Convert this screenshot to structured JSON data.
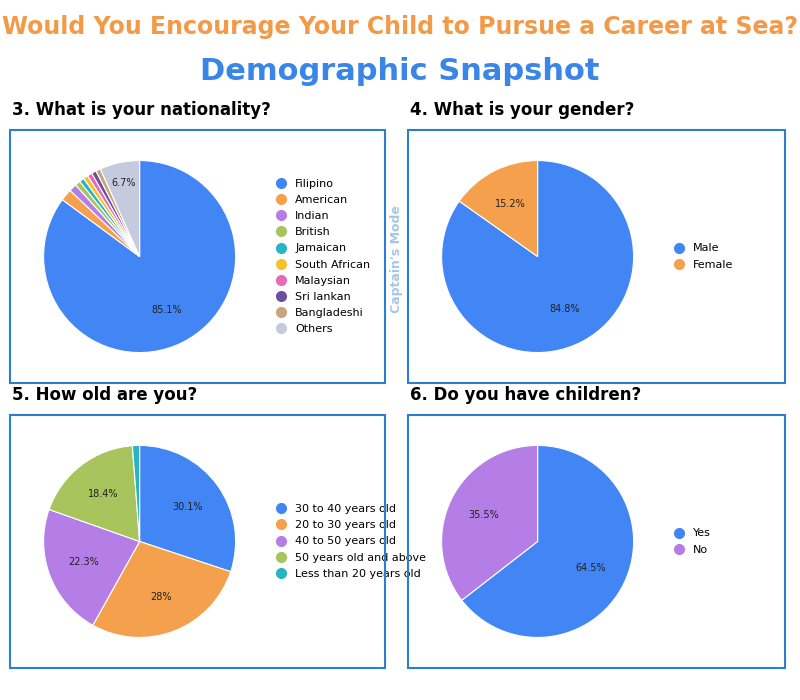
{
  "header": {
    "title": "Would You Encourage Your Child to Pursue a Career at Sea?",
    "subtitle": "Demographic Snapshot",
    "watermark": "Captain's Mode"
  },
  "chart_data": [
    {
      "type": "pie",
      "title": "3. What is your nationality?",
      "categories": [
        "Filipino",
        "American",
        "Indian",
        "British",
        "Jamaican",
        "South African",
        "Malaysian",
        "Sri lankan",
        "Bangladeshi",
        "Others"
      ],
      "values": [
        85.1,
        2.0,
        1.3,
        0.9,
        0.8,
        0.8,
        0.8,
        0.8,
        0.8,
        6.7
      ],
      "value_labels": [
        "85.1%",
        null,
        null,
        null,
        null,
        null,
        null,
        null,
        null,
        "6.7%"
      ],
      "colors": [
        "#4285f4",
        "#f4a04c",
        "#b47ee6",
        "#a8c45c",
        "#27b5c4",
        "#f6c12e",
        "#e66ab4",
        "#6b4fa0",
        "#c9a57c",
        "#c5cadf"
      ],
      "legend": "center left"
    },
    {
      "type": "pie",
      "title": "4. What is your gender?",
      "categories": [
        "Male",
        "Female"
      ],
      "values": [
        84.8,
        15.2
      ],
      "value_labels": [
        "84.8%",
        "15.2%"
      ],
      "colors": [
        "#4285f4",
        "#f4a04c"
      ],
      "legend": "center left"
    },
    {
      "type": "pie",
      "title": "5. How old are you?",
      "categories": [
        "30 to 40 years old",
        "20 to 30 years old",
        "40 to 50 years old",
        "50 years old and above",
        "Less than 20 years old"
      ],
      "values": [
        30.1,
        28,
        22.3,
        18.4,
        1.2
      ],
      "value_labels": [
        "30.1%",
        "28%",
        "22.3%",
        "18.4%",
        null
      ],
      "colors": [
        "#4285f4",
        "#f4a04c",
        "#b47ee6",
        "#a8c45c",
        "#27b5c4"
      ],
      "legend": "center left"
    },
    {
      "type": "pie",
      "title": "6. Do you have children?",
      "categories": [
        "Yes",
        "No"
      ],
      "values": [
        64.5,
        35.5
      ],
      "value_labels": [
        "64.5%",
        "35.5%"
      ],
      "colors": [
        "#4285f4",
        "#b47ee6"
      ],
      "legend": "center left"
    }
  ]
}
